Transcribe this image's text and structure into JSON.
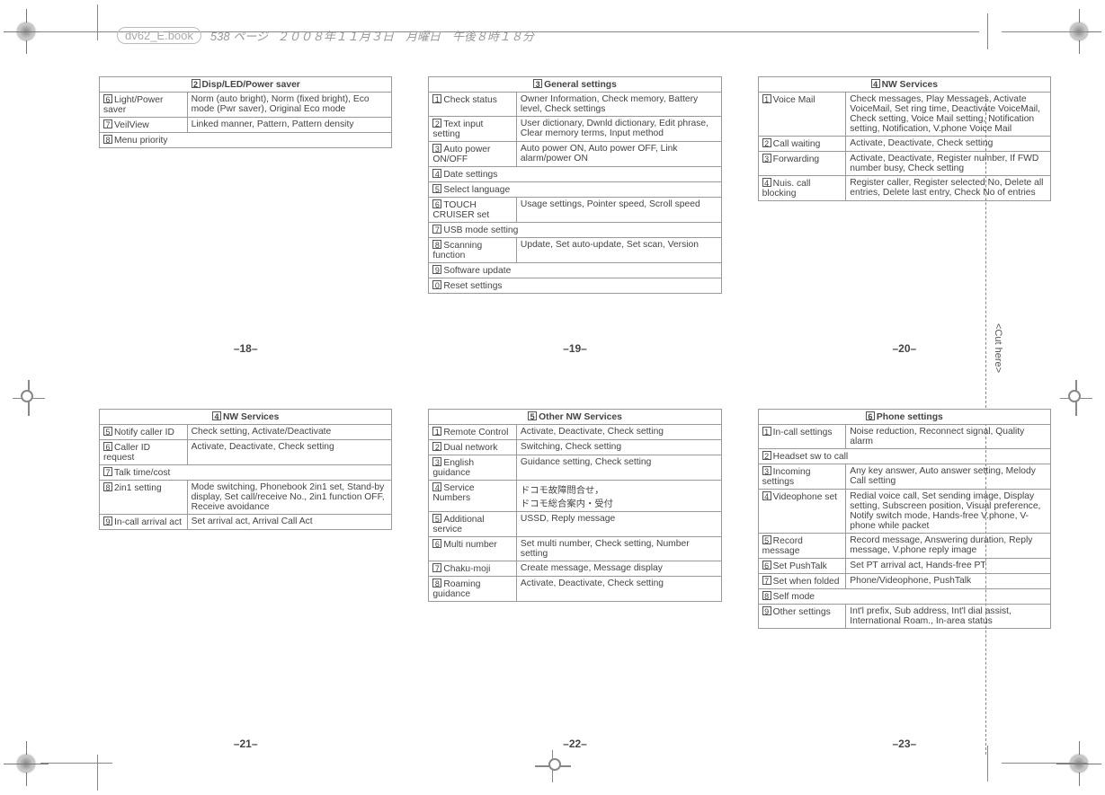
{
  "header": {
    "filename": "dv62_E.book",
    "pagelabel": "538 ページ",
    "date": "２００８年１１月３日　月曜日　午後８時１８分"
  },
  "cuthere": "<Cut here>",
  "pages": {
    "p18": "–18–",
    "p19": "–19–",
    "p20": "–20–",
    "p21": "–21–",
    "p22": "–22–",
    "p23": "–23–"
  },
  "t18": {
    "title_num": "2",
    "title": "Disp/LED/Power saver",
    "rows": [
      {
        "n": "6",
        "l": "Light/Power saver",
        "r": "Norm (auto bright), Norm (fixed bright), Eco mode (Pwr saver), Original Eco mode"
      },
      {
        "n": "7",
        "l": "VeilView",
        "r": "Linked manner, Pattern, Pattern density"
      },
      {
        "n": "8",
        "l": "Menu priority",
        "full": true
      }
    ]
  },
  "t19": {
    "title_num": "3",
    "title": "General settings",
    "rows": [
      {
        "n": "1",
        "l": "Check status",
        "r": "Owner Information, Check memory, Battery level, Check settings"
      },
      {
        "n": "2",
        "l": "Text input setting",
        "r": "User dictionary, Dwnld dictionary, Edit phrase, Clear memory terms, Input method"
      },
      {
        "n": "3",
        "l": "Auto power ON/OFF",
        "r": "Auto power ON, Auto power OFF, Link alarm/power ON"
      },
      {
        "n": "4",
        "l": "Date settings",
        "full": true
      },
      {
        "n": "5",
        "l": "Select language",
        "full": true
      },
      {
        "n": "6",
        "l": "TOUCH CRUISER set",
        "r": "Usage settings, Pointer speed, Scroll speed"
      },
      {
        "n": "7",
        "l": "USB mode setting",
        "full": true
      },
      {
        "n": "8",
        "l": "Scanning function",
        "r": "Update, Set auto-update, Set scan, Version"
      },
      {
        "n": "9",
        "l": "Software update",
        "full": true
      },
      {
        "n": "0",
        "l": "Reset settings",
        "full": true
      }
    ]
  },
  "t20": {
    "title_num": "4",
    "title": "NW Services",
    "rows": [
      {
        "n": "1",
        "l": "Voice Mail",
        "r": "Check messages, Play Messages, Activate VoiceMail, Set ring time, Deactivate VoiceMail, Check setting, Voice Mail setting, Notification setting, Notification, V.phone Voice Mail"
      },
      {
        "n": "2",
        "l": "Call waiting",
        "r": "Activate, Deactivate, Check setting"
      },
      {
        "n": "3",
        "l": "Forwarding",
        "r": "Activate, Deactivate, Register number, If FWD number busy, Check setting"
      },
      {
        "n": "4",
        "l": "Nuis. call blocking",
        "r": "Register caller, Register selected No, Delete all entries, Delete last entry, Check No of entries"
      }
    ]
  },
  "t21": {
    "title_num": "4",
    "title": "NW Services",
    "rows": [
      {
        "n": "5",
        "l": "Notify caller ID",
        "r": "Check setting, Activate/Deactivate"
      },
      {
        "n": "6",
        "l": "Caller ID request",
        "r": "Activate, Deactivate, Check setting"
      },
      {
        "n": "7",
        "l": "Talk time/cost",
        "full": true
      },
      {
        "n": "8",
        "l": "2in1 setting",
        "r": "Mode switching, Phonebook 2in1 set, Stand-by display, Set call/receive No., 2in1 function OFF, Receive avoidance"
      },
      {
        "n": "9",
        "l": "In-call arrival act",
        "r": "Set arrival act, Arrival Call Act"
      }
    ]
  },
  "t22": {
    "title_num": "5",
    "title": "Other NW Services",
    "rows": [
      {
        "n": "1",
        "l": "Remote Control",
        "r": "Activate, Deactivate, Check setting"
      },
      {
        "n": "2",
        "l": "Dual network",
        "r": "Switching, Check setting"
      },
      {
        "n": "3",
        "l": "English guidance",
        "r": "Guidance setting, Check setting"
      },
      {
        "n": "4",
        "l": "Service Numbers",
        "r": "ドコモ故障問合せ，\nドコモ総合案内・受付"
      },
      {
        "n": "5",
        "l": "Additional service",
        "r": "USSD, Reply message"
      },
      {
        "n": "6",
        "l": "Multi number",
        "r": "Set multi number, Check setting, Number setting"
      },
      {
        "n": "7",
        "l": "Chaku-moji",
        "r": "Create message, Message display"
      },
      {
        "n": "8",
        "l": "Roaming guidance",
        "r": "Activate, Deactivate, Check setting"
      }
    ]
  },
  "t23": {
    "title_num": "6",
    "title": "Phone settings",
    "rows": [
      {
        "n": "1",
        "l": "In-call settings",
        "r": "Noise reduction, Reconnect signal, Quality alarm"
      },
      {
        "n": "2",
        "l": "Headset sw to call",
        "full": true
      },
      {
        "n": "3",
        "l": "Incoming settings",
        "r": "Any key answer, Auto answer setting, Melody Call setting"
      },
      {
        "n": "4",
        "l": "Videophone set",
        "r": "Redial voice call, Set sending image, Display setting, Subscreen position, Visual preference, Notify switch mode, Hands-free V.phone, V-phone while packet"
      },
      {
        "n": "5",
        "l": "Record message",
        "r": "Record message, Answering duration, Reply message, V.phone reply image"
      },
      {
        "n": "6",
        "l": "Set PushTalk",
        "r": "Set PT arrival act, Hands-free PT"
      },
      {
        "n": "7",
        "l": "Set when folded",
        "r": "Phone/Videophone, PushTalk"
      },
      {
        "n": "8",
        "l": "Self mode",
        "full": true
      },
      {
        "n": "9",
        "l": "Other settings",
        "r": "Int'l prefix, Sub address, Int'l dial assist, International Roam., In-area status"
      }
    ]
  }
}
